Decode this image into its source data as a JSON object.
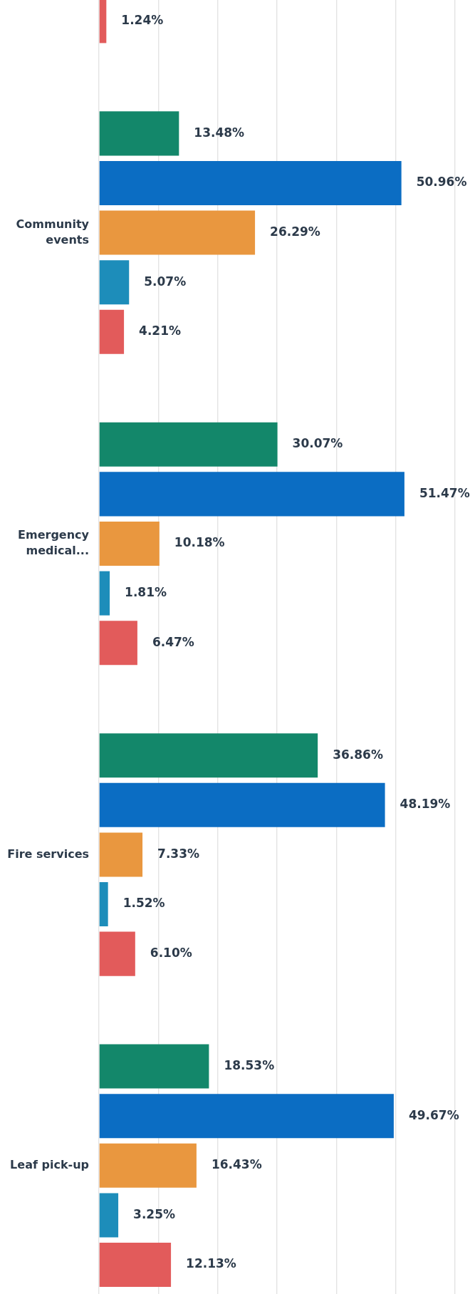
{
  "chart_data": {
    "type": "bar",
    "orientation": "horizontal",
    "categories": [
      null,
      "Community events",
      "Emergency medical...",
      "Fire services",
      "Leaf pick-up"
    ],
    "series": [
      {
        "color": "#13876a",
        "values": [
          null,
          13.48,
          30.07,
          36.86,
          18.53
        ],
        "value_labels": [
          null,
          "13.48%",
          "30.07%",
          "36.86%",
          "18.53%"
        ]
      },
      {
        "color": "#0b6dc3",
        "values": [
          null,
          50.96,
          51.47,
          48.19,
          49.67
        ],
        "value_labels": [
          null,
          "50.96%",
          "51.47%",
          "48.19%",
          "49.67%"
        ]
      },
      {
        "color": "#e9973f",
        "values": [
          null,
          26.29,
          10.18,
          7.33,
          16.43
        ],
        "value_labels": [
          null,
          "26.29%",
          "10.18%",
          "7.33%",
          "16.43%"
        ]
      },
      {
        "color": "#1d8dba",
        "values": [
          null,
          5.07,
          1.81,
          1.52,
          3.25
        ],
        "value_labels": [
          null,
          "5.07%",
          "1.81%",
          "1.52%",
          "3.25%"
        ]
      },
      {
        "color": "#e25b5b",
        "values": [
          1.24,
          4.21,
          6.47,
          6.1,
          12.13
        ],
        "value_labels": [
          "1.24%",
          "4.21%",
          "6.47%",
          "6.10%",
          "12.13%"
        ]
      }
    ],
    "xlim": [
      0,
      60
    ],
    "xticks": [
      {
        "value": 0,
        "label": null
      },
      {
        "value": 10,
        "label": null
      },
      {
        "value": 20,
        "label": null
      },
      {
        "value": 30,
        "label": null
      },
      {
        "value": 40,
        "label": null
      },
      {
        "value": 50,
        "label": null
      },
      {
        "value": 60,
        "label": null
      }
    ],
    "grid": "x",
    "tick_labels": "y"
  }
}
